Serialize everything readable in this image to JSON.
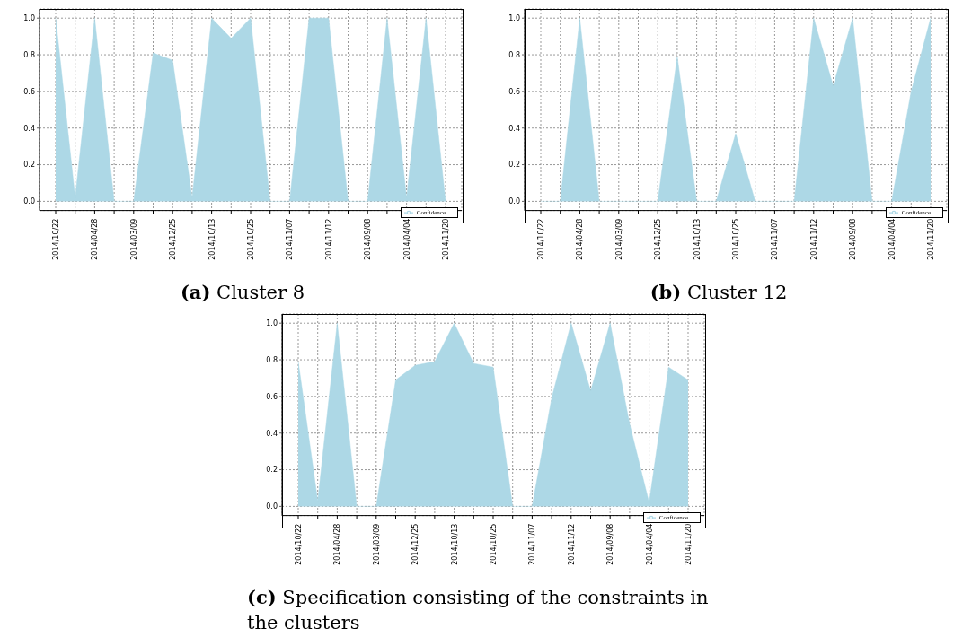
{
  "chart_data": [
    {
      "type": "area",
      "title": "(a) Cluster 8",
      "categories": [
        "2014/10/22",
        null,
        "2014/04/28",
        null,
        "2014/03/09",
        null,
        "2014/12/25",
        null,
        "2014/10/13",
        null,
        "2014/10/25",
        null,
        "2014/11/07",
        null,
        "2014/11/12",
        null,
        "2014/09/08",
        null,
        "2014/04/04",
        null,
        "2014/11/20"
      ],
      "series": [
        {
          "name": "Confidence",
          "color": "#add8e6",
          "values": [
            1.0,
            0.02,
            1.0,
            0,
            0,
            0.81,
            0.77,
            0.02,
            1.0,
            0.89,
            1.0,
            0,
            0,
            1.0,
            1.0,
            0,
            0,
            1.0,
            0.02,
            1.0,
            0
          ]
        }
      ],
      "ylim": [
        -0.05,
        1.05
      ],
      "yticks": [
        {
          "value": 0,
          "label": "0.0"
        },
        {
          "value": 0.2,
          "label": "0.2"
        },
        {
          "value": 0.4,
          "label": "0.4"
        },
        {
          "value": 0.6,
          "label": "0.6"
        },
        {
          "value": 0.8,
          "label": "0.8"
        },
        {
          "value": 1,
          "label": "1.0"
        }
      ],
      "grid": true,
      "legend": "bottom right"
    },
    {
      "type": "area",
      "title": "(b) Cluster 12",
      "categories": [
        "2014/10/22",
        null,
        "2014/04/28",
        null,
        "2014/03/09",
        null,
        "2014/12/25",
        null,
        "2014/10/13",
        null,
        "2014/10/25",
        null,
        "2014/11/07",
        null,
        "2014/11/12",
        null,
        "2014/09/08",
        null,
        "2014/04/04",
        null,
        "2014/11/20"
      ],
      "series": [
        {
          "name": "Confidence",
          "color": "#add8e6",
          "values": [
            0,
            0,
            1.0,
            0,
            0,
            0,
            0,
            0.79,
            0,
            0,
            0.37,
            0,
            0,
            0,
            1.0,
            0.63,
            1.0,
            0,
            0,
            0.6,
            1.0
          ]
        }
      ],
      "ylim": [
        -0.05,
        1.05
      ],
      "yticks": [
        {
          "value": 0,
          "label": "0.0"
        },
        {
          "value": 0.2,
          "label": "0.2"
        },
        {
          "value": 0.4,
          "label": "0.4"
        },
        {
          "value": 0.6,
          "label": "0.6"
        },
        {
          "value": 0.8,
          "label": "0.8"
        },
        {
          "value": 1,
          "label": "1.0"
        }
      ],
      "grid": true,
      "legend": "bottom right"
    },
    {
      "type": "area",
      "title": "(c) Specification consisting of the constraints in the clusters",
      "categories": [
        "2014/10/22",
        null,
        "2014/04/28",
        null,
        "2014/03/09",
        null,
        "2014/12/25",
        null,
        "2014/10/13",
        null,
        "2014/10/25",
        null,
        "2014/11/07",
        null,
        "2014/11/12",
        null,
        "2014/09/08",
        null,
        "2014/04/04",
        null,
        "2014/11/20"
      ],
      "series": [
        {
          "name": "Confidence",
          "color": "#add8e6",
          "values": [
            0.79,
            0.03,
            1.0,
            0,
            0,
            0.69,
            0.77,
            0.79,
            1.0,
            0.78,
            0.76,
            0,
            0,
            0.59,
            1.0,
            0.63,
            1.0,
            0.45,
            0.02,
            0.76,
            0.69
          ]
        }
      ],
      "ylim": [
        -0.05,
        1.05
      ],
      "yticks": [
        {
          "value": 0,
          "label": "0.0"
        },
        {
          "value": 0.2,
          "label": "0.2"
        },
        {
          "value": 0.4,
          "label": "0.4"
        },
        {
          "value": 0.6,
          "label": "0.6"
        },
        {
          "value": 0.8,
          "label": "0.8"
        },
        {
          "value": 1,
          "label": "1.0"
        }
      ],
      "grid": true,
      "legend": "bottom right"
    }
  ]
}
